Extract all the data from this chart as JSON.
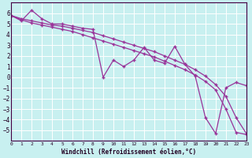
{
  "xlabel": "Windchill (Refroidissement éolien,°C)",
  "bg_color": "#c8f0f0",
  "grid_color": "#ffffff",
  "line_color": "#993399",
  "ylim": [
    -6,
    7
  ],
  "xlim": [
    0,
    23
  ],
  "yticks": [
    -5,
    -4,
    -3,
    -2,
    -1,
    0,
    1,
    2,
    3,
    4,
    5,
    6
  ],
  "xticks": [
    0,
    1,
    2,
    3,
    4,
    5,
    6,
    7,
    8,
    9,
    10,
    11,
    12,
    13,
    14,
    15,
    16,
    17,
    18,
    19,
    20,
    21,
    22,
    23
  ],
  "line1_x": [
    0,
    1,
    2,
    3,
    4,
    5,
    6,
    7,
    8,
    9,
    10,
    11,
    12,
    13,
    14,
    15,
    16,
    17,
    18,
    19,
    20,
    21,
    22,
    23
  ],
  "line1_y": [
    5.8,
    5.4,
    5.1,
    4.9,
    4.7,
    4.5,
    4.3,
    4.0,
    3.7,
    3.4,
    3.1,
    2.8,
    2.5,
    2.2,
    1.9,
    1.5,
    1.1,
    0.7,
    0.2,
    -0.4,
    -1.2,
    -3.0,
    -5.2,
    -5.4
  ],
  "line2_x": [
    0,
    1,
    2,
    3,
    4,
    5,
    6,
    7,
    8,
    9,
    10,
    11,
    12,
    13,
    14,
    15,
    16,
    17,
    18,
    19,
    20,
    21,
    22,
    23
  ],
  "line2_y": [
    5.8,
    5.5,
    5.3,
    5.1,
    4.9,
    4.8,
    4.6,
    4.4,
    4.2,
    3.9,
    3.6,
    3.3,
    3.0,
    2.7,
    2.4,
    2.0,
    1.6,
    1.2,
    0.7,
    0.1,
    -0.7,
    -1.8,
    -3.8,
    -5.3
  ],
  "line3_x": [
    0,
    1,
    2,
    3,
    4,
    5,
    6,
    7,
    8,
    9,
    10,
    11,
    12,
    13,
    14,
    15,
    16,
    17,
    18,
    19,
    20,
    21,
    22,
    23
  ],
  "line3_y": [
    5.8,
    5.3,
    6.3,
    5.5,
    5.0,
    5.0,
    4.8,
    4.6,
    4.5,
    0.0,
    1.6,
    1.0,
    1.6,
    2.8,
    1.6,
    1.3,
    2.9,
    1.2,
    0.1,
    -3.8,
    -5.3,
    -1.0,
    -0.5,
    -0.8
  ]
}
